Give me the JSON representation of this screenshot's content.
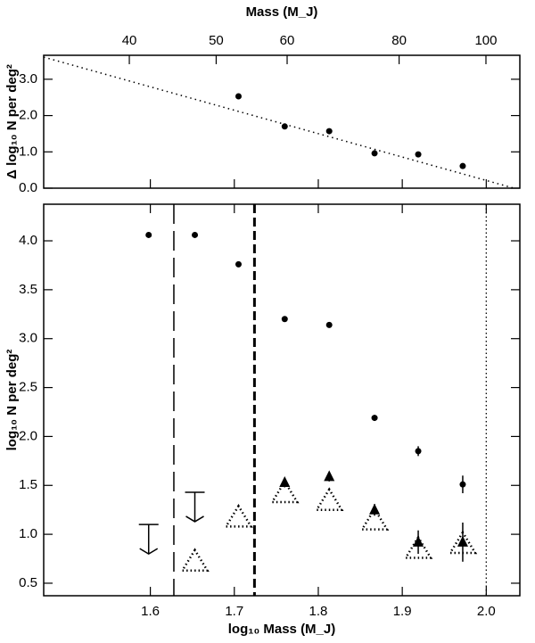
{
  "chart_data": [
    {
      "type": "scatter",
      "ylabel": "Δ log₁₀ N per deg²",
      "x2label": "Mass (M_J)",
      "xlim": [
        1.473,
        2.04
      ],
      "xticks": [
        1.6,
        1.7,
        1.8,
        1.9,
        {
          "value": 2.0,
          "label": "2.0"
        }
      ],
      "xticklabels": false,
      "x2lim": [
        32.1,
        109.1
      ],
      "x2log": true,
      "x2ticks": [
        40,
        50,
        60,
        80,
        100
      ],
      "ylim": [
        0,
        3.66
      ],
      "yticks": [
        {
          "value": 0,
          "label": "0.0"
        },
        {
          "value": 1,
          "label": "1.0"
        },
        {
          "value": 2,
          "label": "2.0"
        },
        {
          "value": 3,
          "label": "3.0"
        }
      ],
      "series": [
        {
          "type": "scatter",
          "marker": "circle",
          "color": "#000000",
          "x": [
            1.705,
            1.76,
            1.813,
            1.867,
            1.919,
            1.972
          ],
          "values": [
            2.53,
            1.7,
            1.57,
            0.96,
            0.93,
            0.61
          ]
        },
        {
          "type": "line",
          "color": "#000000",
          "x": [
            1.473,
            2.033
          ],
          "values": [
            3.61,
            0
          ]
        }
      ]
    },
    {
      "type": "scatter",
      "xlabel": "log₁₀ Mass (M_J)",
      "ylabel": "log₁₀ N per deg²",
      "xlim": [
        1.473,
        2.04
      ],
      "xticks": [
        1.6,
        1.7,
        1.8,
        1.9,
        {
          "value": 2.0,
          "label": "2.0"
        }
      ],
      "ylim": [
        0.372,
        4.374
      ],
      "yticks": [
        0.5,
        {
          "value": 1.0,
          "label": "1.0"
        },
        1.5,
        {
          "value": 2.0,
          "label": "2.0"
        },
        2.5,
        {
          "value": 3.0,
          "label": "3.0"
        },
        3.5,
        {
          "value": 4.0,
          "label": "4.0"
        }
      ],
      "vlines": [
        {
          "x": 1.628,
          "style": "longdash"
        },
        {
          "x": 1.724,
          "style": "dash"
        },
        {
          "x": 2.0,
          "style": "dotted"
        }
      ],
      "series": [
        {
          "type": "scatter",
          "marker": "circle",
          "color": "#000000",
          "x": [
            1.598,
            1.653,
            1.705,
            1.76,
            1.813,
            1.867,
            1.919,
            1.972
          ],
          "values": [
            4.06,
            4.06,
            3.76,
            3.2,
            3.14,
            2.19,
            1.85,
            1.51
          ],
          "errors": [
            null,
            null,
            null,
            null,
            null,
            0.03,
            0.05,
            0.09
          ]
        },
        {
          "type": "scatter",
          "marker": "triangle",
          "color": "#000000",
          "x": [
            1.76,
            1.813,
            1.867,
            1.919,
            1.972
          ],
          "values": [
            1.53,
            1.59,
            1.25,
            0.92,
            0.92
          ],
          "errors": [
            0.05,
            0.05,
            0.06,
            0.12,
            0.2
          ]
        },
        {
          "type": "scatter",
          "marker": "dotted-triangle",
          "color": "#000000",
          "x": [
            1.653,
            1.705,
            1.76,
            1.813,
            1.867,
            1.919,
            1.972
          ],
          "values": [
            0.73,
            1.18,
            1.43,
            1.35,
            1.15,
            0.86,
            0.91
          ]
        },
        {
          "type": "scatter",
          "marker": "upper-limit",
          "color": "#000000",
          "x": [
            1.598,
            1.653
          ],
          "values": [
            1.1,
            1.43
          ]
        }
      ]
    }
  ]
}
